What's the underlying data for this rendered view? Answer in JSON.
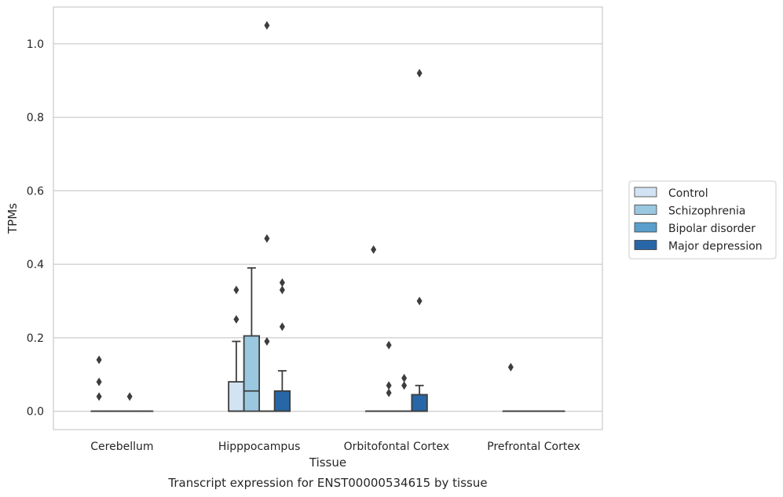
{
  "chart_data": {
    "type": "box",
    "title": "",
    "caption": "Transcript expression for ENST00000534615 by tissue",
    "xlabel": "Tissue",
    "ylabel": "TPMs",
    "ylim": [
      -0.05,
      1.1
    ],
    "yticks": [
      "0.0",
      "0.2",
      "0.4",
      "0.6",
      "0.8",
      "1.0"
    ],
    "grid": true,
    "legend_position": "right",
    "categories": [
      "Cerebellum",
      "Hipppocampus",
      "Orbitofontal Cortex",
      "Prefrontal Cortex"
    ],
    "series": [
      {
        "name": "Control",
        "color": "#d2e3f3",
        "boxes": [
          {
            "q1": 0,
            "median": 0,
            "q3": 0,
            "whislo": 0,
            "whishi": 0,
            "fliers": [
              0.14,
              0.08,
              0.04
            ]
          },
          {
            "q1": 0,
            "median": 0,
            "q3": 0.08,
            "whislo": 0,
            "whishi": 0.19,
            "fliers": [
              0.33,
              0.25
            ]
          },
          {
            "q1": 0,
            "median": 0,
            "q3": 0,
            "whislo": 0,
            "whishi": 0,
            "fliers": [
              0.44
            ]
          },
          {
            "q1": 0,
            "median": 0,
            "q3": 0,
            "whislo": 0,
            "whishi": 0,
            "fliers": [
              0.12
            ]
          }
        ]
      },
      {
        "name": "Schizophrenia",
        "color": "#9ac8e0",
        "boxes": [
          {
            "q1": 0,
            "median": 0,
            "q3": 0,
            "whislo": 0,
            "whishi": 0,
            "fliers": []
          },
          {
            "q1": 0,
            "median": 0.055,
            "q3": 0.205,
            "whislo": 0,
            "whishi": 0.39,
            "fliers": []
          },
          {
            "q1": 0,
            "median": 0,
            "q3": 0,
            "whislo": 0,
            "whishi": 0,
            "fliers": [
              0.18,
              0.07,
              0.05
            ]
          },
          {
            "q1": 0,
            "median": 0,
            "q3": 0,
            "whislo": 0,
            "whishi": 0,
            "fliers": []
          }
        ]
      },
      {
        "name": "Bipolar disorder",
        "color": "#5a9fcd",
        "boxes": [
          {
            "q1": 0,
            "median": 0,
            "q3": 0,
            "whislo": 0,
            "whishi": 0,
            "fliers": [
              0.04
            ]
          },
          {
            "q1": 0,
            "median": 0,
            "q3": 0,
            "whislo": 0,
            "whishi": 0,
            "fliers": [
              1.05,
              0.47,
              0.19
            ]
          },
          {
            "q1": 0,
            "median": 0,
            "q3": 0,
            "whislo": 0,
            "whishi": 0,
            "fliers": [
              0.09,
              0.07
            ]
          },
          {
            "q1": 0,
            "median": 0,
            "q3": 0,
            "whislo": 0,
            "whishi": 0,
            "fliers": []
          }
        ]
      },
      {
        "name": "Major depression",
        "color": "#2867a7",
        "boxes": [
          {
            "q1": 0,
            "median": 0,
            "q3": 0,
            "whislo": 0,
            "whishi": 0,
            "fliers": []
          },
          {
            "q1": 0,
            "median": 0,
            "q3": 0.055,
            "whislo": 0,
            "whishi": 0.11,
            "fliers": [
              0.35,
              0.33,
              0.23
            ]
          },
          {
            "q1": 0,
            "median": 0,
            "q3": 0.045,
            "whislo": 0,
            "whishi": 0.07,
            "fliers": [
              0.92,
              0.3
            ]
          },
          {
            "q1": 0,
            "median": 0,
            "q3": 0,
            "whislo": 0,
            "whishi": 0,
            "fliers": []
          }
        ]
      }
    ]
  }
}
